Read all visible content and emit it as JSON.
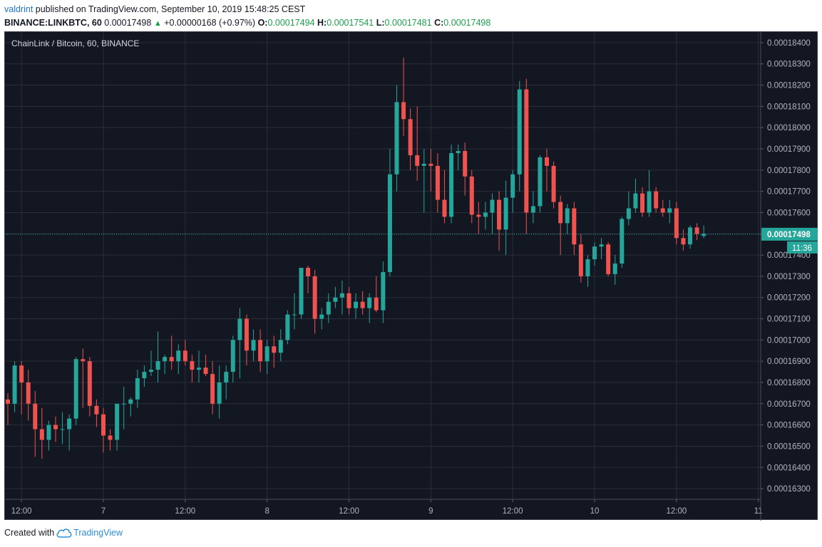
{
  "header": {
    "author": "valdrint",
    "published_text": "published on TradingView.com, September 10, 2019 15:48:25 CEST",
    "symbol": "BINANCE:LINKBTC, 60",
    "last": "0.00017498",
    "change_arrow": "▲",
    "change": "+0.00000168 (+0.97%)",
    "o_label": "O:",
    "o_value": "0.00017494",
    "h_label": "H:",
    "h_value": "0.00017541",
    "l_label": "L:",
    "l_value": "0.00017481",
    "c_label": "C:",
    "c_value": "0.00017498"
  },
  "chart_title": "ChainLink / Bitcoin, 60, BINANCE",
  "footer": {
    "created_with": "Created with",
    "brand": "TradingView",
    "icon": "cloud-icon"
  },
  "colors": {
    "background": "#131722",
    "grid": "#2a2e39",
    "up": "#26a69a",
    "down": "#ef5350",
    "text": "#b2b5be",
    "price_line": "#26a69a"
  },
  "chart_data": {
    "type": "candlestick",
    "title": "ChainLink / Bitcoin, 60, BINANCE",
    "interval": "60",
    "ylim": [
      0.0001625,
      0.0001845
    ],
    "y_ticks": [
      "0.00018400",
      "0.00018300",
      "0.00018200",
      "0.00018100",
      "0.00018000",
      "0.00017900",
      "0.00017800",
      "0.00017700",
      "0.00017600",
      "0.00017500",
      "0.00017400",
      "0.00017300",
      "0.00017200",
      "0.00017100",
      "0.00017000",
      "0.00016900",
      "0.00016800",
      "0.00016700",
      "0.00016600",
      "0.00016500",
      "0.00016400",
      "0.00016300"
    ],
    "x_ticks": [
      {
        "label": "12:00",
        "index": 2
      },
      {
        "label": "7",
        "index": 14
      },
      {
        "label": "12:00",
        "index": 26
      },
      {
        "label": "8",
        "index": 38
      },
      {
        "label": "12:00",
        "index": 50
      },
      {
        "label": "9",
        "index": 62
      },
      {
        "label": "12:00",
        "index": 74
      },
      {
        "label": "10",
        "index": 86
      },
      {
        "label": "12:00",
        "index": 98
      },
      {
        "label": "11",
        "index": 110
      }
    ],
    "last_price": "0.00017498",
    "countdown": "11:36",
    "candles": [
      [
        0.0001672,
        0.0001675,
        0.000166,
        0.000167
      ],
      [
        0.000167,
        0.000169,
        0.0001666,
        0.0001688
      ],
      [
        0.0001688,
        0.000169,
        0.0001665,
        0.000168
      ],
      [
        0.000168,
        0.0001686,
        0.0001662,
        0.000167
      ],
      [
        0.000167,
        0.0001676,
        0.0001645,
        0.0001658
      ],
      [
        0.0001658,
        0.0001668,
        0.0001644,
        0.0001653
      ],
      [
        0.0001653,
        0.0001662,
        0.0001648,
        0.000166
      ],
      [
        0.000166,
        0.0001664,
        0.0001652,
        0.0001658
      ],
      [
        0.0001658,
        0.0001666,
        0.0001651,
        0.0001658
      ],
      [
        0.0001658,
        0.0001665,
        0.0001648,
        0.0001663
      ],
      [
        0.0001663,
        0.0001692,
        0.000166,
        0.0001691
      ],
      [
        0.0001691,
        0.0001696,
        0.0001668,
        0.000169
      ],
      [
        0.000169,
        0.0001692,
        0.0001664,
        0.0001669
      ],
      [
        0.0001669,
        0.0001672,
        0.0001659,
        0.0001665
      ],
      [
        0.0001665,
        0.0001668,
        0.0001647,
        0.0001655
      ],
      [
        0.0001655,
        0.0001658,
        0.0001648,
        0.0001653
      ],
      [
        0.0001653,
        0.0001668,
        0.0001648,
        0.000167
      ],
      [
        0.000167,
        0.0001678,
        0.0001658,
        0.000167
      ],
      [
        0.000167,
        0.0001673,
        0.0001664,
        0.0001672
      ],
      [
        0.0001672,
        0.0001686,
        0.0001668,
        0.0001682
      ],
      [
        0.0001682,
        0.0001688,
        0.0001678,
        0.0001685
      ],
      [
        0.0001685,
        0.0001695,
        0.0001683,
        0.0001686
      ],
      [
        0.0001686,
        0.0001704,
        0.000168,
        0.000169
      ],
      [
        0.000169,
        0.0001693,
        0.0001684,
        0.0001692
      ],
      [
        0.0001692,
        0.0001702,
        0.0001686,
        0.000169
      ],
      [
        0.000169,
        0.0001698,
        0.0001684,
        0.0001695
      ],
      [
        0.0001695,
        0.00017,
        0.0001688,
        0.000169
      ],
      [
        0.000169,
        0.0001693,
        0.000168,
        0.0001686
      ],
      [
        0.0001686,
        0.0001695,
        0.000168,
        0.0001687
      ],
      [
        0.0001687,
        0.0001693,
        0.0001683,
        0.0001684
      ],
      [
        0.0001684,
        0.000169,
        0.0001665,
        0.000167
      ],
      [
        0.000167,
        0.0001688,
        0.0001663,
        0.000168
      ],
      [
        0.000168,
        0.0001688,
        0.0001672,
        0.0001685
      ],
      [
        0.0001685,
        0.0001702,
        0.000168,
        0.00017
      ],
      [
        0.00017,
        0.0001715,
        0.0001682,
        0.000171
      ],
      [
        0.000171,
        0.0001712,
        0.0001688,
        0.0001695
      ],
      [
        0.0001695,
        0.0001705,
        0.000169,
        0.00017
      ],
      [
        0.00017,
        0.0001705,
        0.0001685,
        0.000169
      ],
      [
        0.000169,
        0.00017,
        0.0001684,
        0.0001697
      ],
      [
        0.0001697,
        0.0001702,
        0.0001687,
        0.0001694
      ],
      [
        0.0001694,
        0.0001705,
        0.000169,
        0.00017
      ],
      [
        0.00017,
        0.0001714,
        0.0001698,
        0.0001712
      ],
      [
        0.0001712,
        0.0001722,
        0.0001705,
        0.0001712
      ],
      [
        0.0001712,
        0.0001734,
        0.000171,
        0.0001734
      ],
      [
        0.0001734,
        0.0001735,
        0.0001722,
        0.000173
      ],
      [
        0.000173,
        0.0001733,
        0.0001703,
        0.000171
      ],
      [
        0.000171,
        0.0001715,
        0.0001705,
        0.0001712
      ],
      [
        0.0001712,
        0.0001722,
        0.0001708,
        0.0001718
      ],
      [
        0.0001718,
        0.0001725,
        0.0001715,
        0.000172
      ],
      [
        0.000172,
        0.0001728,
        0.0001712,
        0.0001722
      ],
      [
        0.0001722,
        0.0001725,
        0.0001712,
        0.0001715
      ],
      [
        0.0001715,
        0.0001722,
        0.000171,
        0.0001718
      ],
      [
        0.0001718,
        0.0001723,
        0.0001712,
        0.0001715
      ],
      [
        0.0001715,
        0.0001722,
        0.0001708,
        0.000172
      ],
      [
        0.000172,
        0.000173,
        0.0001713,
        0.0001714
      ],
      [
        0.0001714,
        0.0001737,
        0.0001708,
        0.0001732
      ],
      [
        0.0001732,
        0.000179,
        0.000173,
        0.0001778
      ],
      [
        0.0001778,
        0.000182,
        0.000177,
        0.0001812
      ],
      [
        0.0001812,
        0.0001833,
        0.0001796,
        0.0001804
      ],
      [
        0.0001804,
        0.0001809,
        0.000178,
        0.0001787
      ],
      [
        0.0001787,
        0.000181,
        0.0001775,
        0.0001782
      ],
      [
        0.0001782,
        0.000179,
        0.000176,
        0.0001783
      ],
      [
        0.0001783,
        0.000179,
        0.000177,
        0.0001782
      ],
      [
        0.0001782,
        0.0001788,
        0.000176,
        0.0001766
      ],
      [
        0.0001766,
        0.000178,
        0.0001755,
        0.0001758
      ],
      [
        0.0001758,
        0.0001792,
        0.0001755,
        0.0001788
      ],
      [
        0.0001788,
        0.0001792,
        0.000178,
        0.0001789
      ],
      [
        0.0001789,
        0.0001793,
        0.0001768,
        0.0001777
      ],
      [
        0.0001777,
        0.000178,
        0.0001755,
        0.0001759
      ],
      [
        0.0001759,
        0.0001765,
        0.000175,
        0.0001758
      ],
      [
        0.0001758,
        0.0001765,
        0.0001752,
        0.000176
      ],
      [
        0.000176,
        0.0001769,
        0.000175,
        0.0001766
      ],
      [
        0.0001766,
        0.000177,
        0.0001742,
        0.0001752
      ],
      [
        0.0001752,
        0.0001775,
        0.000174,
        0.0001767
      ],
      [
        0.0001767,
        0.000178,
        0.000176,
        0.0001778
      ],
      [
        0.0001778,
        0.0001822,
        0.000177,
        0.0001818
      ],
      [
        0.0001818,
        0.0001823,
        0.000175,
        0.000176
      ],
      [
        0.000176,
        0.000177,
        0.0001755,
        0.0001763
      ],
      [
        0.0001763,
        0.0001787,
        0.000176,
        0.0001786
      ],
      [
        0.0001786,
        0.000179,
        0.000177,
        0.0001782
      ],
      [
        0.0001782,
        0.0001784,
        0.0001762,
        0.0001765
      ],
      [
        0.0001765,
        0.0001768,
        0.000174,
        0.0001755
      ],
      [
        0.0001755,
        0.0001764,
        0.000175,
        0.0001762
      ],
      [
        0.0001762,
        0.0001765,
        0.000174,
        0.0001745
      ],
      [
        0.0001745,
        0.000175,
        0.0001727,
        0.000173
      ],
      [
        0.000173,
        0.000174,
        0.0001725,
        0.0001738
      ],
      [
        0.0001738,
        0.0001746,
        0.0001735,
        0.0001744
      ],
      [
        0.0001744,
        0.0001748,
        0.0001738,
        0.0001745
      ],
      [
        0.0001745,
        0.0001746,
        0.000173,
        0.0001731
      ],
      [
        0.0001731,
        0.000174,
        0.0001726,
        0.0001736
      ],
      [
        0.0001736,
        0.0001758,
        0.0001734,
        0.0001757
      ],
      [
        0.0001757,
        0.000177,
        0.0001754,
        0.0001762
      ],
      [
        0.0001762,
        0.0001776,
        0.000176,
        0.0001769
      ],
      [
        0.0001769,
        0.0001772,
        0.0001758,
        0.000176
      ],
      [
        0.000176,
        0.000178,
        0.0001758,
        0.000177
      ],
      [
        0.000177,
        0.0001772,
        0.000176,
        0.0001762
      ],
      [
        0.0001762,
        0.0001766,
        0.0001758,
        0.000176
      ],
      [
        0.000176,
        0.0001766,
        0.0001755,
        0.0001762
      ],
      [
        0.0001762,
        0.0001765,
        0.0001745,
        0.0001748
      ],
      [
        0.0001748,
        0.0001752,
        0.0001742,
        0.0001745
      ],
      [
        0.0001745,
        0.0001754,
        0.0001743,
        0.0001753
      ],
      [
        0.0001753,
        0.0001755,
        0.0001747,
        0.000175
      ],
      [
        0.0001749,
        0.0001754,
        0.0001748,
        0.000175
      ]
    ]
  }
}
